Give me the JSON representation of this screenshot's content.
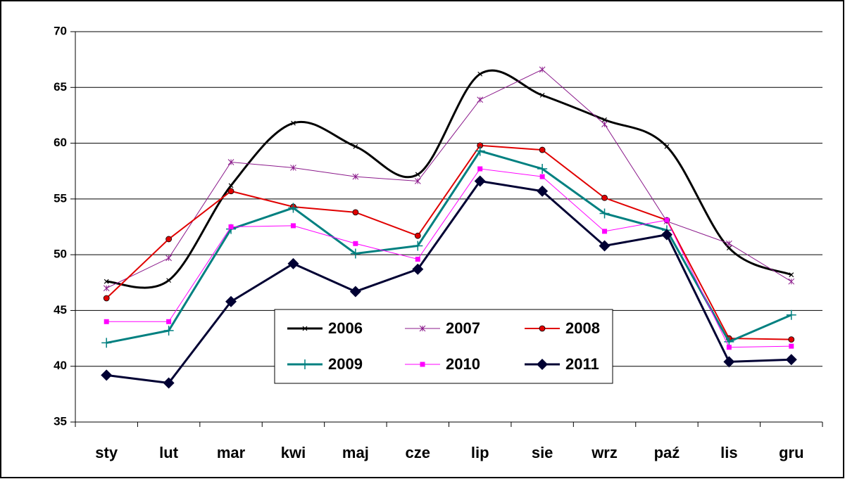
{
  "chart_data": {
    "type": "line",
    "categories": [
      "sty",
      "lut",
      "mar",
      "kwi",
      "maj",
      "cze",
      "lip",
      "sie",
      "wrz",
      "paź",
      "lis",
      "gru"
    ],
    "series": [
      {
        "name": "2006",
        "color": "#000000",
        "marker": "x",
        "smooth": true,
        "width": 3,
        "values": [
          47.6,
          47.7,
          56.2,
          61.8,
          59.7,
          57.2,
          66.2,
          64.3,
          62.1,
          59.7,
          50.6,
          48.2
        ]
      },
      {
        "name": "2007",
        "color": "#8b1a8b",
        "marker": "star",
        "width": 1,
        "values": [
          47.0,
          49.7,
          58.3,
          57.8,
          57.0,
          56.6,
          63.9,
          66.6,
          61.7,
          53.0,
          51.0,
          47.6
        ]
      },
      {
        "name": "2008",
        "color": "#e00000",
        "marker": "circle",
        "width": 2,
        "values": [
          46.1,
          51.4,
          55.7,
          54.3,
          53.8,
          51.7,
          59.8,
          59.4,
          55.1,
          53.1,
          42.5,
          42.4
        ]
      },
      {
        "name": "2009",
        "color": "#008080",
        "marker": "plus",
        "width": 3,
        "values": [
          42.1,
          43.2,
          52.3,
          54.2,
          50.1,
          50.8,
          59.3,
          57.7,
          53.7,
          52.2,
          42.2,
          44.6
        ]
      },
      {
        "name": "2010",
        "color": "#ff00ff",
        "marker": "square",
        "width": 1,
        "values": [
          44.0,
          44.0,
          52.5,
          52.6,
          51.0,
          49.6,
          57.7,
          57.0,
          52.1,
          53.1,
          41.7,
          41.8
        ]
      },
      {
        "name": "2011",
        "color": "#000033",
        "marker": "diamond",
        "width": 3,
        "values": [
          39.2,
          38.5,
          45.8,
          49.2,
          46.7,
          48.7,
          56.6,
          55.7,
          50.8,
          51.8,
          40.4,
          40.6
        ]
      }
    ],
    "ylim": [
      35,
      70
    ],
    "yticks": [
      35,
      40,
      45,
      50,
      55,
      60,
      65,
      70
    ],
    "grid": true,
    "legend": "inside-bottom-center"
  }
}
